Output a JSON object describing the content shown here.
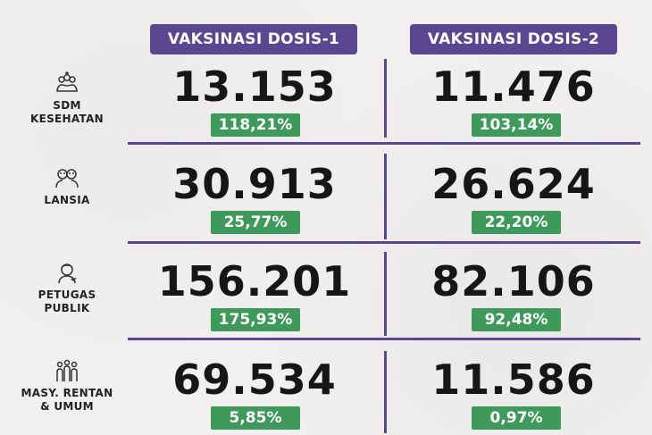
{
  "headers": {
    "dose1": "VAKSINASI DOSIS-1",
    "dose2": "VAKSINASI DOSIS-2"
  },
  "rows": [
    {
      "label_line1": "SDM",
      "label_line2": "KESEHATAN",
      "icon": "health-workers-icon",
      "dose1_value": "13.153",
      "dose1_pct": "118,21%",
      "dose2_value": "11.476",
      "dose2_pct": "103,14%"
    },
    {
      "label_line1": "LANSIA",
      "label_line2": "",
      "icon": "elderly-icon",
      "dose1_value": "30.913",
      "dose1_pct": "25,77%",
      "dose2_value": "26.624",
      "dose2_pct": "22,20%"
    },
    {
      "label_line1": "PETUGAS",
      "label_line2": "PUBLIK",
      "icon": "public-officer-icon",
      "dose1_value": "156.201",
      "dose1_pct": "175,93%",
      "dose2_value": "82.106",
      "dose2_pct": "92,48%"
    },
    {
      "label_line1": "MASY. RENTAN",
      "label_line2": "& UMUM",
      "icon": "community-icon",
      "dose1_value": "69.534",
      "dose1_pct": "5,85%",
      "dose2_value": "11.586",
      "dose2_pct": "0,97%"
    }
  ],
  "colors": {
    "accent": "#5a4691",
    "badge": "#3e9a5a",
    "background": "#f1f0ee"
  }
}
